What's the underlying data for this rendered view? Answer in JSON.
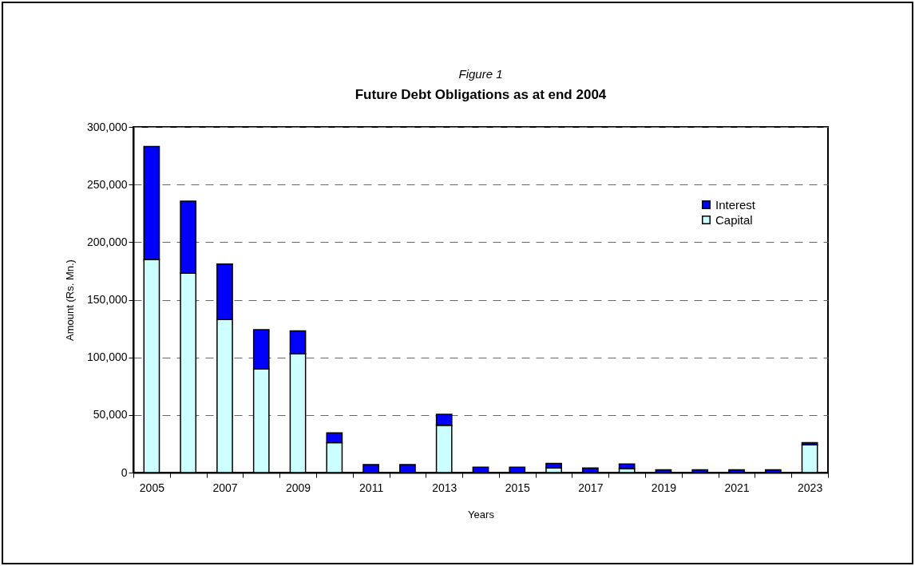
{
  "chart_data": {
    "type": "bar",
    "title": "Figure 1",
    "subtitle": "Future Debt Obligations as at end 2004",
    "xlabel": "Years",
    "ylabel": "Amount (Rs. Mn.)",
    "categories": [
      "2005",
      null,
      "2007",
      null,
      "2009",
      null,
      "2011",
      null,
      "2013",
      null,
      "2015",
      null,
      "2017",
      null,
      "2019",
      null,
      "2021",
      null,
      "2023"
    ],
    "stacked": true,
    "series": [
      {
        "name": "Capital",
        "color": "#ccffff",
        "values": [
          185000,
          173000,
          133000,
          90000,
          103000,
          26000,
          0,
          0,
          41000,
          0,
          0,
          4000,
          0,
          3500,
          0,
          0,
          0,
          0,
          24000
        ]
      },
      {
        "name": "Interest",
        "color": "#0000ff",
        "values": [
          98000,
          62500,
          48000,
          34000,
          20000,
          8500,
          7000,
          7000,
          9500,
          4600,
          4600,
          4000,
          4000,
          4000,
          2500,
          2500,
          2500,
          2500,
          2000
        ]
      }
    ],
    "ylim": [
      0,
      300000
    ],
    "yticks": [
      0,
      {
        "value": 50000,
        "label": "50,000"
      },
      {
        "value": 100000,
        "label": "100,000"
      },
      {
        "value": 150000,
        "label": "150,000"
      },
      {
        "value": 200000,
        "label": "200,000"
      },
      {
        "value": 250000,
        "label": "250,000"
      },
      {
        "value": 300000,
        "label": "300,000"
      }
    ],
    "grid": "y",
    "legend": "top right"
  }
}
